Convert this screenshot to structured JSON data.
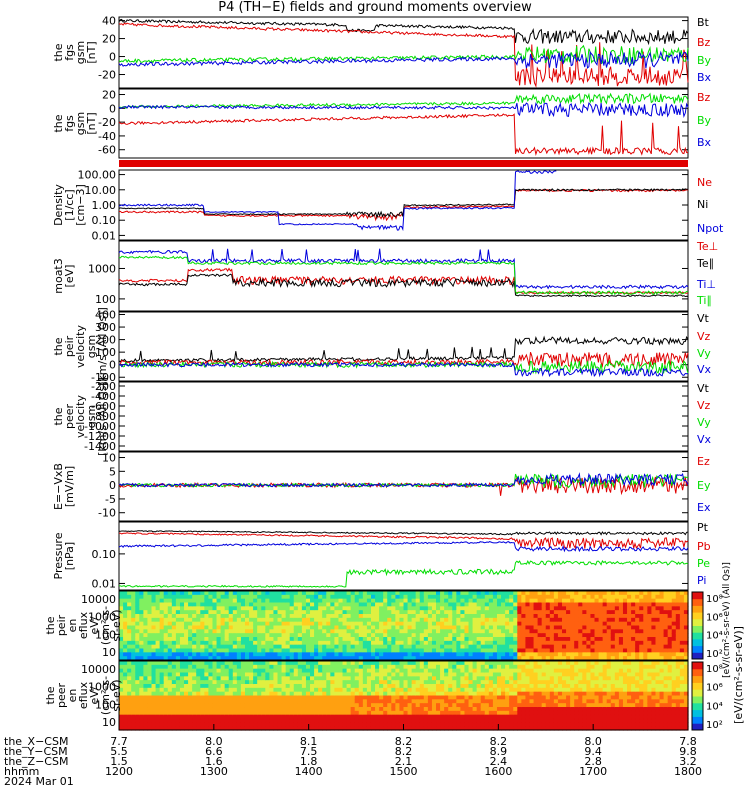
{
  "title": "P4 (TH−E) fields and ground moments overview",
  "colors": {
    "black": "#000000",
    "red": "#e00000",
    "green": "#00dd00",
    "blue": "#0000dd"
  },
  "chart_data": [
    {
      "type": "line",
      "id": "fgs_gsm_total",
      "ylabel": [
        "the",
        "fgs",
        "gsm",
        "[nT]"
      ],
      "yticks": [
        -20,
        0,
        20,
        40
      ],
      "ylim": [
        -35,
        44
      ],
      "series": [
        {
          "name": "Bt",
          "color": "black"
        },
        {
          "name": "Bz",
          "color": "red"
        },
        {
          "name": "By",
          "color": "green"
        },
        {
          "name": "Bx",
          "color": "blue"
        }
      ]
    },
    {
      "type": "line",
      "id": "fgs_gsm",
      "ylabel": [
        "the",
        "fgs",
        "gsm",
        "[nT]"
      ],
      "yticks": [
        -60,
        -40,
        -20,
        0,
        20
      ],
      "ylim": [
        -72,
        28
      ],
      "series": [
        {
          "name": "Bz",
          "color": "red"
        },
        {
          "name": "By",
          "color": "green"
        },
        {
          "name": "Bx",
          "color": "blue"
        }
      ]
    },
    {
      "type": "line",
      "id": "density",
      "ylabel": [
        "Density",
        "[1/cc]",
        "[cm−3]"
      ],
      "log": true,
      "yticks": [
        "0.01",
        "0.10",
        "1.00",
        "10.00",
        "100.00"
      ],
      "ylim": [
        0.005,
        200
      ],
      "series": [
        {
          "name": "Ne",
          "color": "red"
        },
        {
          "name": "Ni",
          "color": "black"
        },
        {
          "name": "Npot",
          "color": "blue"
        }
      ]
    },
    {
      "type": "line",
      "id": "temperature",
      "ylabel": [
        "moat3",
        "[eV]"
      ],
      "log": true,
      "yticks": [
        "100",
        "1000"
      ],
      "ylim": [
        40,
        8000
      ],
      "series": [
        {
          "name": "Te⊥",
          "color": "red"
        },
        {
          "name": "Te∥",
          "color": "black"
        },
        {
          "name": "Ti⊥",
          "color": "blue"
        },
        {
          "name": "Ti∥",
          "color": "green"
        }
      ]
    },
    {
      "type": "line",
      "id": "peir_velocity",
      "ylabel": [
        "the",
        "peir",
        "velocity",
        "gsm",
        "[km/s (All Qs)]"
      ],
      "yticks": [
        -100,
        0,
        100,
        200,
        300,
        400
      ],
      "ylim": [
        -130,
        420
      ],
      "series": [
        {
          "name": "Vt",
          "color": "black"
        },
        {
          "name": "Vz",
          "color": "red"
        },
        {
          "name": "Vy",
          "color": "green"
        },
        {
          "name": "Vx",
          "color": "blue"
        }
      ]
    },
    {
      "type": "line",
      "id": "peer_velocity",
      "ylabel": [
        "the",
        "peer",
        "velocity",
        "gsm",
        "[km/s (All Qs)]"
      ],
      "yticks": [
        -1400,
        -1200,
        -1000,
        -800,
        -600,
        -400,
        -200
      ],
      "ylim": [
        -1500,
        -120
      ],
      "series": [
        {
          "name": "Vt",
          "color": "black"
        },
        {
          "name": "Vz",
          "color": "red"
        },
        {
          "name": "Vy",
          "color": "green"
        },
        {
          "name": "Vx",
          "color": "blue"
        }
      ]
    },
    {
      "type": "line",
      "id": "efield",
      "ylabel": [
        "E=−VxB",
        "[mV/m]"
      ],
      "yticks": [
        -10,
        -5,
        0,
        5,
        10
      ],
      "ylim": [
        -13,
        12
      ],
      "series": [
        {
          "name": "Ez",
          "color": "red"
        },
        {
          "name": "Ey",
          "color": "green"
        },
        {
          "name": "Ex",
          "color": "blue"
        }
      ]
    },
    {
      "type": "line",
      "id": "pressure",
      "ylabel": [
        "Pressure",
        "[nPa]"
      ],
      "log": true,
      "yticks": [
        "0.01",
        "0.10"
      ],
      "ylim": [
        0.006,
        1.2
      ],
      "series": [
        {
          "name": "Pt",
          "color": "black"
        },
        {
          "name": "Pb",
          "color": "red"
        },
        {
          "name": "Pe",
          "color": "green"
        },
        {
          "name": "Pi",
          "color": "blue"
        }
      ]
    },
    {
      "type": "heatmap",
      "id": "peir_spec",
      "ylabel": [
        "the",
        "peir",
        "en",
        "eflux",
        "eV/",
        "(cm²-s-",
        "sr-eV)"
      ],
      "yticks": [
        "10",
        "100",
        "1000",
        "10000"
      ]
    },
    {
      "type": "heatmap",
      "id": "peer_spec",
      "ylabel": [
        "the",
        "peer",
        "en",
        "eflux",
        "eV/",
        "(cm²-s-",
        "sr-eV)"
      ],
      "yticks": [
        "10",
        "100",
        "1000",
        "10000"
      ]
    }
  ],
  "colorbars": {
    "top_ticks": [
      "10²",
      "10⁴",
      "10⁶",
      "10⁸"
    ],
    "bottom_ticks": [
      "10²",
      "10⁴",
      "10⁶",
      "10⁸"
    ],
    "label": "[eV/(cm²-s-sr-eV)]",
    "label2": "[eV/(cm²-s-sr-eV) (All Qs)]"
  },
  "xaxis": {
    "rows": [
      {
        "label": "the_X−CSM",
        "values": [
          "7.7",
          "8.0",
          "8.1",
          "8.2",
          "8.2",
          "8.0",
          "7.8"
        ]
      },
      {
        "label": "the_Y−CSM",
        "values": [
          "5.5",
          "6.6",
          "7.5",
          "8.2",
          "8.9",
          "9.4",
          "9.8"
        ]
      },
      {
        "label": "the_Z−CSM",
        "values": [
          "1.5",
          "1.6",
          "1.8",
          "2.1",
          "2.4",
          "2.8",
          "3.2"
        ]
      },
      {
        "label": "hhmm",
        "values": [
          "1200",
          "1300",
          "1400",
          "1500",
          "1600",
          "1700",
          "1800"
        ]
      }
    ],
    "date": "2024 Mar 01"
  }
}
